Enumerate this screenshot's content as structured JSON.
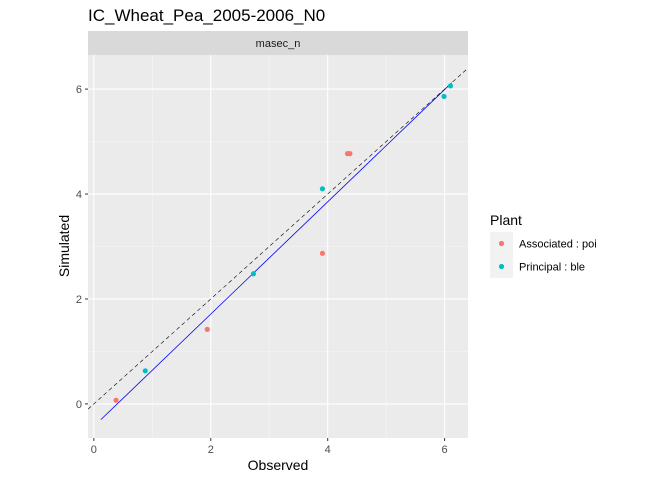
{
  "chart_data": {
    "type": "scatter",
    "title": "IC_Wheat_Pea_2005-2006_N0",
    "facet_label": "masec_n",
    "xlabel": "Observed",
    "ylabel": "Simulated",
    "xlim": [
      -0.1,
      6.4
    ],
    "ylim": [
      -0.65,
      6.65
    ],
    "x_ticks": [
      0,
      2,
      4,
      6
    ],
    "y_ticks": [
      0,
      2,
      4,
      6
    ],
    "grid": true,
    "legend": {
      "title": "Plant",
      "placement": "right"
    },
    "series": [
      {
        "name": "Associated : poi",
        "color": "#F8766D",
        "points": [
          {
            "x": 0.38,
            "y": 0.07
          },
          {
            "x": 1.94,
            "y": 1.42
          },
          {
            "x": 3.91,
            "y": 2.87
          },
          {
            "x": 4.34,
            "y": 4.77
          },
          {
            "x": 4.38,
            "y": 4.77
          }
        ]
      },
      {
        "name": "Principal : ble",
        "color": "#00BFC4",
        "points": [
          {
            "x": 0.88,
            "y": 0.63
          },
          {
            "x": 2.73,
            "y": 2.48
          },
          {
            "x": 3.91,
            "y": 4.1
          },
          {
            "x": 5.99,
            "y": 5.86
          },
          {
            "x": 6.1,
            "y": 6.06
          }
        ]
      }
    ],
    "reference_lines": [
      {
        "kind": "identity",
        "style": "dashed",
        "color": "#000000",
        "slope": 1,
        "intercept": 0
      },
      {
        "kind": "fit",
        "style": "solid",
        "color": "#0000FF",
        "x_range": [
          0.12,
          6.12
        ],
        "y_range": [
          -0.3,
          6.12
        ]
      }
    ]
  }
}
